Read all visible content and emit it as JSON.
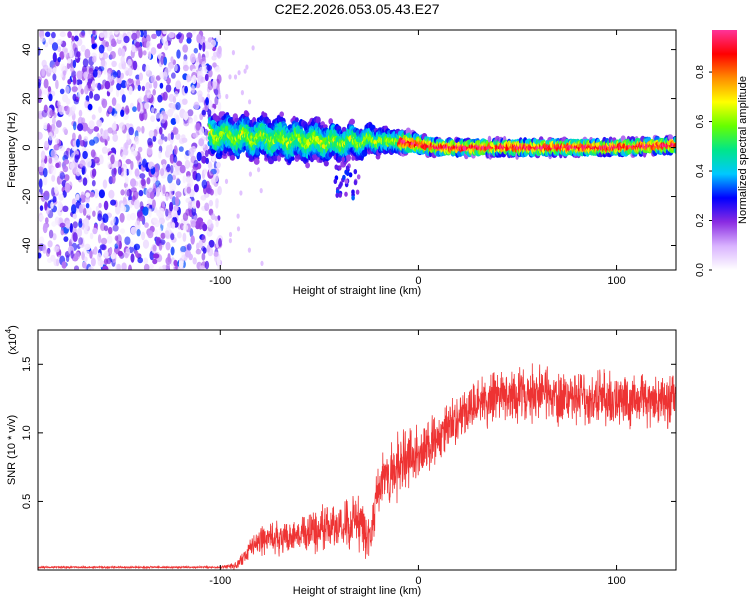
{
  "title": "C2E2.2026.053.05.43.E27",
  "chart_data": [
    {
      "type": "heatmap",
      "xlabel": "Height of straight line (km)",
      "ylabel": "Frequency (Hz)",
      "xlim": [
        -192,
        130
      ],
      "ylim": [
        -50,
        48
      ],
      "xticks": [
        -100,
        0,
        100
      ],
      "xtick_labels": [
        "-100",
        "0",
        "100"
      ],
      "yticks": [
        -40,
        -20,
        0,
        20,
        40
      ],
      "ytick_labels": [
        "-40",
        "-20",
        "0",
        "20",
        "40"
      ],
      "colorbar": {
        "label": "Normalized spectral amplitude",
        "range": [
          0,
          0.97
        ],
        "ticks": [
          0,
          0.2,
          0.4,
          0.6,
          0.8
        ],
        "tick_labels": [
          "0.0",
          "0.2",
          "0.4",
          "0.6",
          "0.8"
        ],
        "colors": [
          "#ffffff",
          "#d9b3ff",
          "#8a2be2",
          "#0000ff",
          "#00c8ff",
          "#00e68a",
          "#66ff00",
          "#ffff00",
          "#ff8c00",
          "#ff0000",
          "#ff3399"
        ]
      },
      "description_points": {
        "noise_region_x": [
          -192,
          -103
        ],
        "signal_ridge": [
          {
            "x": -105,
            "freq": 5,
            "width": 8
          },
          {
            "x": -80,
            "freq": 4,
            "width": 8
          },
          {
            "x": -60,
            "freq": 3,
            "width": 8
          },
          {
            "x": -40,
            "freq": 2,
            "width": 7
          },
          {
            "x": -20,
            "freq": 3,
            "width": 5
          },
          {
            "x": -5,
            "freq": 2,
            "width": 4
          },
          {
            "x": 10,
            "freq": 0,
            "width": 3
          },
          {
            "x": 50,
            "freq": 0,
            "width": 3
          },
          {
            "x": 100,
            "freq": 0,
            "width": 3
          },
          {
            "x": 130,
            "freq": 1,
            "width": 3
          }
        ]
      }
    },
    {
      "type": "line",
      "xlabel": "Height of straight line (km)",
      "ylabel": "SNR (10 * v/v)",
      "y_scale_label": "(x10",
      "y_scale_exp": "4",
      "xlim": [
        -192,
        130
      ],
      "ylim": [
        0,
        17500
      ],
      "xticks": [
        -100,
        0,
        100
      ],
      "xtick_labels": [
        "-100",
        "0",
        "100"
      ],
      "yticks": [
        5000,
        10000,
        15000
      ],
      "ytick_labels": [
        "0.5",
        "1.0",
        "1.5"
      ],
      "series": [
        {
          "name": "SNR",
          "color": "#ee3333",
          "envelope_x": [
            -192,
            -100,
            -92,
            -85,
            -80,
            -60,
            -40,
            -30,
            -24,
            -22,
            -18,
            -15,
            -10,
            0,
            10,
            20,
            30,
            40,
            60,
            80,
            100,
            130
          ],
          "envelope_mean": [
            200,
            200,
            300,
            1500,
            2200,
            2600,
            3200,
            3400,
            2000,
            4800,
            6500,
            7200,
            7800,
            8600,
            9500,
            11000,
            12000,
            12800,
            12800,
            12600,
            12500,
            12400
          ],
          "envelope_spread": [
            60,
            60,
            300,
            800,
            1000,
            1300,
            1600,
            1800,
            1200,
            1800,
            2200,
            2200,
            2200,
            2000,
            1700,
            1700,
            1700,
            1800,
            1800,
            1800,
            1800,
            1800
          ]
        }
      ]
    }
  ]
}
